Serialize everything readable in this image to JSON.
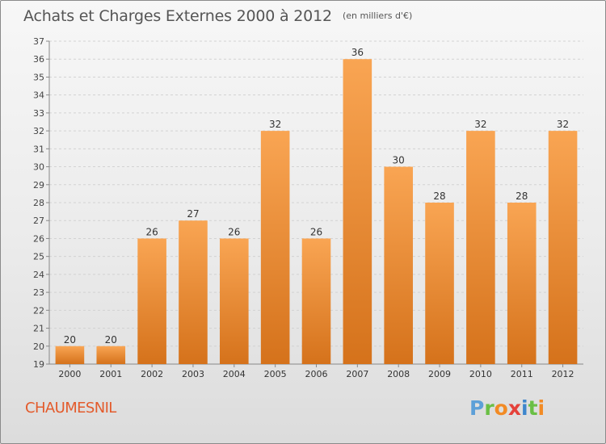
{
  "header": {
    "title": "Achats et Charges Externes 2000 à 2012",
    "subtitle": "(en milliers d'€)"
  },
  "footer": {
    "commune": "CHAUMESNIL",
    "logo_text": "Proxiti",
    "logo_parts": [
      "P",
      "r",
      "o",
      "x",
      "i",
      "t",
      "i"
    ]
  },
  "colors": {
    "bar_top": "#f9a553",
    "bar_bottom": "#d5721b",
    "commune_text": "#e35b2c",
    "title_text": "#555555"
  },
  "chart_data": {
    "type": "bar",
    "title": "Achats et Charges Externes 2000 à 2012",
    "subtitle": "(en milliers d'€)",
    "categories": [
      "2000",
      "2001",
      "2002",
      "2003",
      "2004",
      "2005",
      "2006",
      "2007",
      "2008",
      "2009",
      "2010",
      "2011",
      "2012"
    ],
    "values": [
      20,
      20,
      26,
      27,
      26,
      32,
      26,
      36,
      30,
      28,
      32,
      28,
      32
    ],
    "ylim": [
      19,
      37
    ],
    "yticks": [
      19,
      20,
      21,
      22,
      23,
      24,
      25,
      26,
      27,
      28,
      29,
      30,
      31,
      32,
      33,
      34,
      35,
      36,
      37
    ],
    "grid": true,
    "data_labels": true
  }
}
